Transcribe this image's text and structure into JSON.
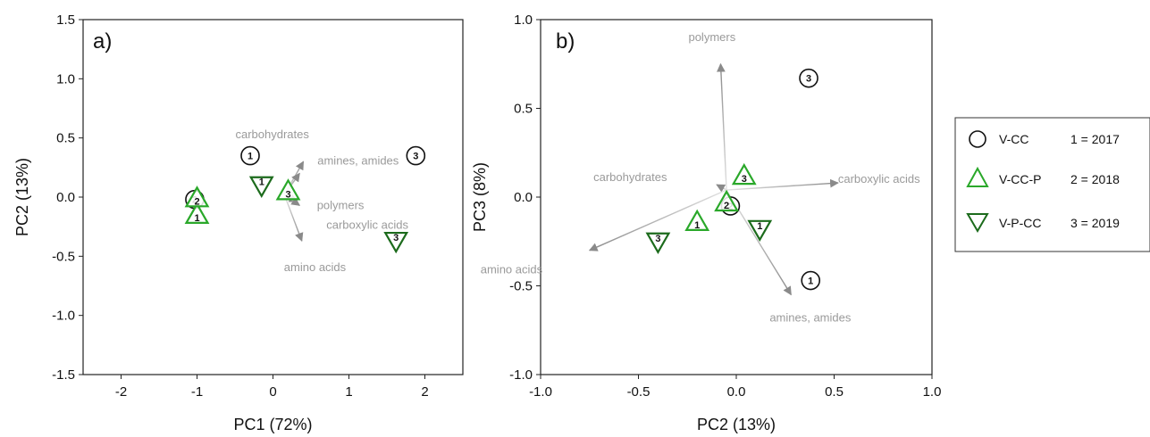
{
  "colors": {
    "vcc": "#111111",
    "vccp": "#2aa82a",
    "vpcc": "#1c6b1c",
    "arrow": "#8a8a8a",
    "arrow_label": "#9a9a9a"
  },
  "legend": {
    "treatments": [
      {
        "symbol": "circle",
        "label": "V-CC"
      },
      {
        "symbol": "triangle-up",
        "label": "V-CC-P"
      },
      {
        "symbol": "triangle-down",
        "label": "V-P-CC"
      }
    ],
    "years": [
      "1 = 2017",
      "2 = 2018",
      "3 = 2019"
    ]
  },
  "chart_data": [
    {
      "type": "scatter",
      "panel_label": "a)",
      "xlabel": "PC1 (72%)",
      "ylabel": "PC2 (13%)",
      "xlim": [
        -2.5,
        2.5
      ],
      "ylim": [
        -1.5,
        1.5
      ],
      "xticks": [
        -2,
        -1,
        0,
        1,
        2
      ],
      "xtick_labels": [
        "-2",
        "-1",
        "0",
        "1",
        "2"
      ],
      "yticks": [
        -1.5,
        -1.0,
        -0.5,
        0.0,
        0.5,
        1.0,
        1.5
      ],
      "ytick_labels": [
        "-1.5",
        "-1.0",
        "-0.5",
        "0.0",
        "0.5",
        "1.0",
        "1.5"
      ],
      "grid": false,
      "vector_origin": [
        0.15,
        0.02
      ],
      "vectors": [
        {
          "label": "carbohydrates",
          "x": 0.4,
          "y": 0.3
        },
        {
          "label": "amines, amides",
          "x": 0.35,
          "y": 0.2
        },
        {
          "label": "polymers",
          "x": 0.32,
          "y": -0.04
        },
        {
          "label": "carboxylic acids",
          "x": 0.35,
          "y": -0.07
        },
        {
          "label": "amino acids",
          "x": 0.38,
          "y": -0.37
        }
      ],
      "points": [
        {
          "series": "V-CC",
          "year": "1",
          "x": -0.3,
          "y": 0.35
        },
        {
          "series": "V-CC",
          "year": "2",
          "x": -1.03,
          "y": -0.02
        },
        {
          "series": "V-CC",
          "year": "3",
          "x": 1.88,
          "y": 0.35
        },
        {
          "series": "V-CC-P",
          "year": "1",
          "x": -1.0,
          "y": -0.15
        },
        {
          "series": "V-CC-P",
          "year": "2",
          "x": -1.0,
          "y": -0.01
        },
        {
          "series": "V-CC-P",
          "year": "3",
          "x": 0.2,
          "y": 0.05
        },
        {
          "series": "V-P-CC",
          "year": "1",
          "x": -0.15,
          "y": 0.1
        },
        {
          "series": "V-P-CC",
          "year": "3",
          "x": 1.62,
          "y": -0.37
        }
      ]
    },
    {
      "type": "scatter",
      "panel_label": "b)",
      "xlabel": "PC2 (13%)",
      "ylabel": "PC3 (8%)",
      "xlim": [
        -1.0,
        1.0
      ],
      "ylim": [
        -1.0,
        1.0
      ],
      "xticks": [
        -1.0,
        -0.5,
        0.0,
        0.5,
        1.0
      ],
      "xtick_labels": [
        "-1.0",
        "-0.5",
        "0.0",
        "0.5",
        "1.0"
      ],
      "yticks": [
        -1.0,
        -0.5,
        0.0,
        0.5,
        1.0
      ],
      "ytick_labels": [
        "-1.0",
        "-0.5",
        "0.0",
        "0.5",
        "1.0"
      ],
      "grid": false,
      "vector_origin": [
        -0.05,
        0.04
      ],
      "vectors": [
        {
          "label": "polymers",
          "x": -0.08,
          "y": 0.75
        },
        {
          "label": "carboxylic acids",
          "x": 0.52,
          "y": 0.08
        },
        {
          "label": "carbohydrates",
          "x": -0.1,
          "y": 0.07
        },
        {
          "label": "amino acids",
          "x": -0.75,
          "y": -0.3
        },
        {
          "label": "amines, amides",
          "x": 0.28,
          "y": -0.55
        }
      ],
      "points": [
        {
          "series": "V-CC",
          "year": "1",
          "x": 0.38,
          "y": -0.47
        },
        {
          "series": "V-CC",
          "year": "2",
          "x": -0.03,
          "y": -0.05
        },
        {
          "series": "V-CC",
          "year": "3",
          "x": 0.37,
          "y": 0.67
        },
        {
          "series": "V-CC-P",
          "year": "1",
          "x": -0.2,
          "y": -0.14
        },
        {
          "series": "V-CC-P",
          "year": "2",
          "x": -0.05,
          "y": -0.03
        },
        {
          "series": "V-CC-P",
          "year": "3",
          "x": 0.04,
          "y": 0.12
        },
        {
          "series": "V-P-CC",
          "year": "1",
          "x": 0.12,
          "y": -0.18
        },
        {
          "series": "V-P-CC",
          "year": "3",
          "x": -0.4,
          "y": -0.25
        }
      ]
    }
  ]
}
